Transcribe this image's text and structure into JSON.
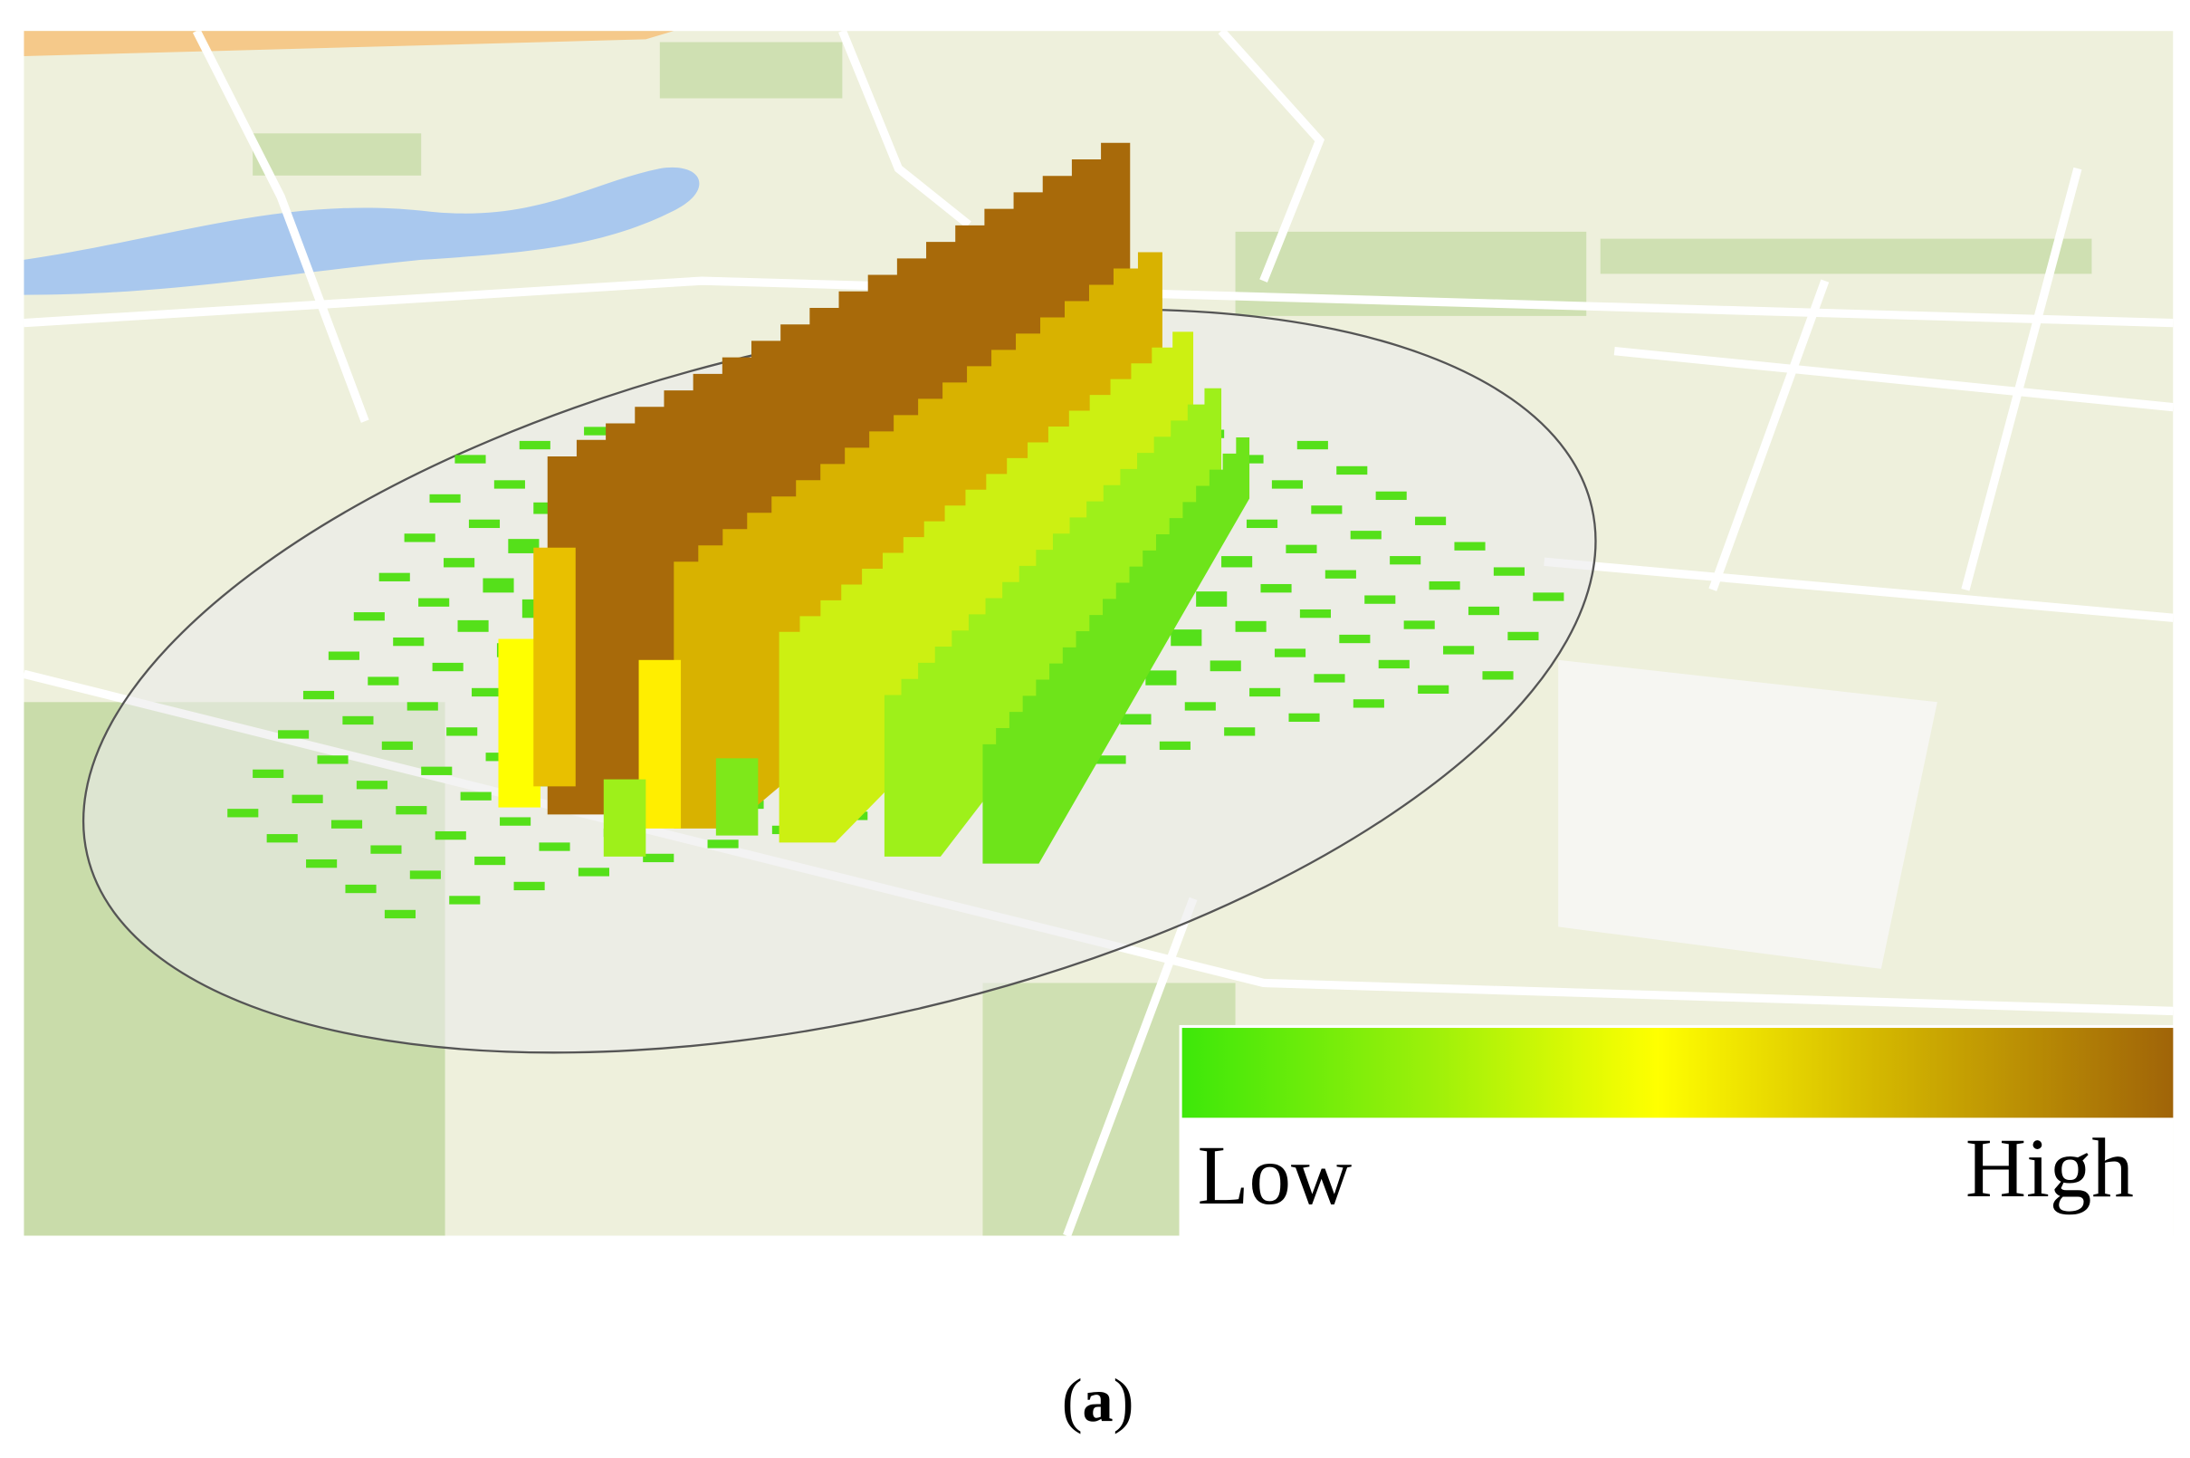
{
  "legend": {
    "low": "Low",
    "high": "High"
  },
  "caption": {
    "open": "(",
    "label": "a",
    "close": ")"
  }
}
